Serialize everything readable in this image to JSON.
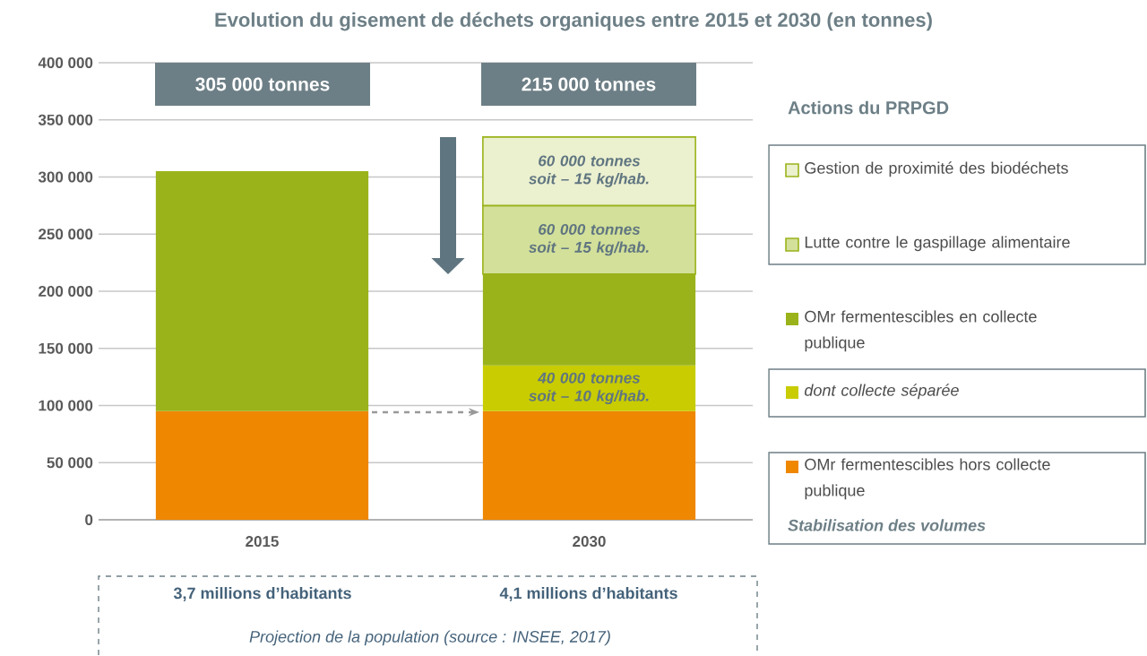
{
  "chart_data": {
    "type": "bar",
    "stacked": true,
    "title": "Evolution du gisement de déchets organiques entre 2015 et 2030 (en tonnes)",
    "categories": [
      "2015",
      "2030"
    ],
    "series": [
      {
        "name": "OMr fermentescibles hors collecte publique",
        "color": "#ef8700",
        "values": [
          95000,
          95000
        ]
      },
      {
        "name": "dont collecte séparée",
        "color": "#c8cc00",
        "values": [
          null,
          40000
        ],
        "value_labels": [
          null,
          "40 000 tonnes soit – 10 kg/hab."
        ]
      },
      {
        "name": "OMr fermentescibles en collecte publique",
        "color": "#9ab31b",
        "values": [
          210000,
          80000
        ]
      },
      {
        "name": "Lutte contre le gaspillage alimentaire",
        "color": "#d3e09a",
        "values": [
          null,
          60000
        ],
        "value_labels": [
          null,
          "60 000 tonnes soit – 15 kg/hab."
        ]
      },
      {
        "name": "Gestion de proximité des biodéchets",
        "color": "#ebf0cf",
        "values": [
          null,
          60000
        ],
        "value_labels": [
          null,
          "60 000 tonnes soit – 15 kg/hab."
        ]
      }
    ],
    "legend_title": "Actions du PRPGD",
    "legend": "right",
    "ylim": [
      0,
      400000
    ],
    "yticks": [
      {
        "value": 0,
        "label": "0"
      },
      {
        "value": 50000,
        "label": "50 000"
      },
      {
        "value": 100000,
        "label": "100 000"
      },
      {
        "value": 150000,
        "label": "150 000"
      },
      {
        "value": 200000,
        "label": "200 000"
      },
      {
        "value": 250000,
        "label": "250 000"
      },
      {
        "value": 300000,
        "label": "300 000"
      },
      {
        "value": 350000,
        "label": "350 000"
      },
      {
        "value": 400000,
        "label": "400 000"
      }
    ],
    "grid": "y",
    "annotations": [
      "305 000 tonnes",
      "215 000 tonnes",
      "Stabilisation des volumes",
      "3,7 millions d’habitants",
      "4,1 millions d’habitants",
      "Projection de la population (source : INSEE, 2017)"
    ]
  }
}
